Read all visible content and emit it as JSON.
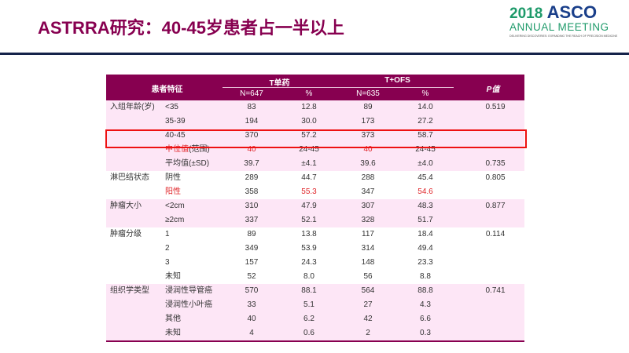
{
  "title": "ASTRRA研究：40-45岁患者占一半以上",
  "logo": {
    "year": "2018",
    "brand": "ASCO",
    "line2": "ANNUAL MEETING",
    "tagline": "DELIVERING DISCOVERIES: EXPANDING THE REACH OF PRECISION MEDICINE"
  },
  "colors": {
    "header": "#870050",
    "pink_row": "#fde6f6",
    "highlight": "#ee1111",
    "red_text": "#e0262a"
  },
  "table": {
    "header": {
      "characteristic": "患者特征",
      "group1": "T单药",
      "group2": "T+OFS",
      "n1": "N=647",
      "pct1": "%",
      "n2": "N=635",
      "pct2": "%",
      "p": "P值"
    },
    "rows": [
      {
        "cat": "入组年龄(岁)",
        "sub": "<35",
        "n1": "83",
        "p1": "12.8",
        "n2": "89",
        "p2": "14.0",
        "p": "0.519",
        "pink": true
      },
      {
        "cat": "",
        "sub": "35-39",
        "n1": "194",
        "p1": "30.0",
        "n2": "173",
        "p2": "27.2",
        "p": "",
        "pink": true
      },
      {
        "cat": "",
        "sub": "40-45",
        "n1": "370",
        "p1": "57.2",
        "n2": "373",
        "p2": "58.7",
        "p": "",
        "pink": true,
        "highlighted": true
      },
      {
        "cat": "",
        "sub": "中位值",
        "sub2": "(范围)",
        "n1": "40",
        "p1": "24-45",
        "n2": "40",
        "p2": "24-45",
        "p": "",
        "pink": true,
        "red": [
          "sub",
          "n1",
          "n2"
        ]
      },
      {
        "cat": "",
        "sub": "平均值(±SD)",
        "n1": "39.7",
        "p1": "±4.1",
        "n2": "39.6",
        "p2": "±4.0",
        "p": "0.735",
        "pink": true
      },
      {
        "cat": "淋巴结状态",
        "sub": "阴性",
        "n1": "289",
        "p1": "44.7",
        "n2": "288",
        "p2": "45.4",
        "p": "0.805",
        "pink": false
      },
      {
        "cat": "",
        "sub": "阳性",
        "n1": "358",
        "p1": "55.3",
        "n2": "347",
        "p2": "54.6",
        "p": "",
        "pink": false,
        "red": [
          "sub",
          "p1",
          "p2"
        ]
      },
      {
        "cat": "肿瘤大小",
        "sub": "<2cm",
        "n1": "310",
        "p1": "47.9",
        "n2": "307",
        "p2": "48.3",
        "p": "0.877",
        "pink": true
      },
      {
        "cat": "",
        "sub": "≥2cm",
        "n1": "337",
        "p1": "52.1",
        "n2": "328",
        "p2": "51.7",
        "p": "",
        "pink": true
      },
      {
        "cat": "肿瘤分级",
        "sub": "1",
        "n1": "89",
        "p1": "13.8",
        "n2": "117",
        "p2": "18.4",
        "p": "0.114",
        "pink": false
      },
      {
        "cat": "",
        "sub": "2",
        "n1": "349",
        "p1": "53.9",
        "n2": "314",
        "p2": "49.4",
        "p": "",
        "pink": false
      },
      {
        "cat": "",
        "sub": "3",
        "n1": "157",
        "p1": "24.3",
        "n2": "148",
        "p2": "23.3",
        "p": "",
        "pink": false
      },
      {
        "cat": "",
        "sub": "未知",
        "n1": "52",
        "p1": "8.0",
        "n2": "56",
        "p2": "8.8",
        "p": "",
        "pink": false
      },
      {
        "cat": "组织学类型",
        "sub": "浸润性导管癌",
        "n1": "570",
        "p1": "88.1",
        "n2": "564",
        "p2": "88.8",
        "p": "0.741",
        "pink": true
      },
      {
        "cat": "",
        "sub": "浸润性小叶癌",
        "n1": "33",
        "p1": "5.1",
        "n2": "27",
        "p2": "4.3",
        "p": "",
        "pink": true
      },
      {
        "cat": "",
        "sub": "其他",
        "n1": "40",
        "p1": "6.2",
        "n2": "42",
        "p2": "6.6",
        "p": "",
        "pink": true
      },
      {
        "cat": "",
        "sub": "未知",
        "n1": "4",
        "p1": "0.6",
        "n2": "2",
        "p2": "0.3",
        "p": "",
        "pink": true
      }
    ]
  }
}
